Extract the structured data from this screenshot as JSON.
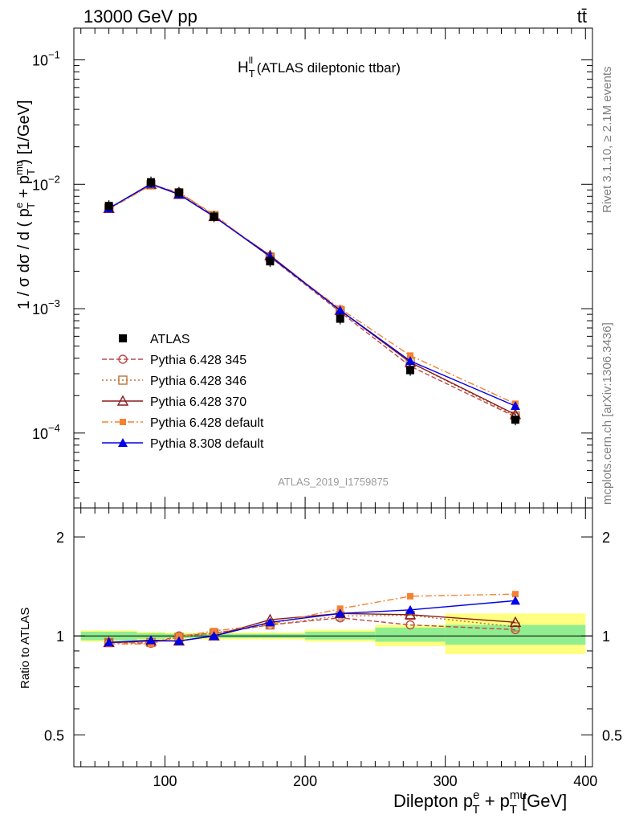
{
  "header": {
    "beam": "13000 GeV pp",
    "process": "tt̄"
  },
  "side_labels": {
    "rivet": "Rivet 3.1.10, ≥ 2.1M events",
    "mcplots": "mcplots.cern.ch [arXiv:1306.3436]"
  },
  "chart_data": [
    {
      "type": "line",
      "title": "Hₗₗ_T (ATLAS dileptonic ttbar)",
      "title_main": "H",
      "title_sup": "ll",
      "title_sub": "T",
      "title_rest": " (ATLAS dileptonic ttbar)",
      "ylabel": "1 / σ  dσ / d ( p^e_T + p^mu_T ) [1/GeV]",
      "yscale": "log",
      "ylim": [
        2.5e-05,
        0.18
      ],
      "xlim": [
        35,
        405
      ],
      "legend_position": "lower-left",
      "ref_label": "ATLAS_2019_I1759875",
      "yticks": [
        {
          "v": 0.1,
          "base": "10",
          "exp": "−1"
        },
        {
          "v": 0.01,
          "base": "10",
          "exp": "−2"
        },
        {
          "v": 0.001,
          "base": "10",
          "exp": "−3"
        },
        {
          "v": 0.0001,
          "base": "10",
          "exp": "−4"
        }
      ],
      "data": {
        "name": "ATLAS",
        "x": [
          60,
          90,
          110,
          135,
          175,
          225,
          275,
          350
        ],
        "y": [
          0.0067,
          0.0104,
          0.0086,
          0.0055,
          0.0024,
          0.00083,
          0.00032,
          0.000128
        ]
      },
      "series": [
        {
          "name": "Pythia 6.428 345",
          "color": "#c0474a",
          "marker": "open-circle",
          "dash": "6,3",
          "values": [
            0.0064,
            0.0099,
            0.0086,
            0.0056,
            0.0026,
            0.00094,
            0.000345,
            0.000135
          ]
        },
        {
          "name": "Pythia 6.428 346",
          "color": "#b87333",
          "marker": "open-square",
          "dash": "2,3",
          "values": [
            0.0064,
            0.0099,
            0.0085,
            0.0056,
            0.0026,
            0.00096,
            0.00037,
            0.000137
          ]
        },
        {
          "name": "Pythia 6.428 370",
          "color": "#8b1a1a",
          "marker": "open-triangle",
          "dash": "",
          "values": [
            0.0064,
            0.01,
            0.0083,
            0.0055,
            0.00268,
            0.00097,
            0.00037,
            0.000141
          ]
        },
        {
          "name": "Pythia 6.428 default",
          "color": "#f58231",
          "marker": "filled-square",
          "dash": "8,3,2,3",
          "values": [
            0.0063,
            0.0098,
            0.0086,
            0.0057,
            0.0026,
            0.001,
            0.00042,
            0.000172
          ]
        },
        {
          "name": "Pythia 8.308 default",
          "color": "#0000e6",
          "marker": "filled-triangle",
          "dash": "",
          "values": [
            0.0064,
            0.0101,
            0.0083,
            0.0055,
            0.00263,
            0.00097,
            0.00038,
            0.000165
          ]
        }
      ]
    },
    {
      "type": "line",
      "ylabel": "Ratio to ATLAS",
      "xlabel": "Dilepton p^e_T + p^mu_T [GeV]",
      "yscale": "log",
      "ylim": [
        0.4,
        2.45
      ],
      "xlim": [
        35,
        405
      ],
      "yticks": [
        {
          "v": 2,
          "label": "2"
        },
        {
          "v": 1,
          "label": "1"
        },
        {
          "v": 0.5,
          "label": "0.5"
        }
      ],
      "xticks": [
        {
          "v": 100,
          "label": "100"
        },
        {
          "v": 200,
          "label": "200"
        },
        {
          "v": 300,
          "label": "300"
        },
        {
          "v": 400,
          "label": "400"
        }
      ],
      "bands": [
        {
          "x0": 40,
          "x1": 80,
          "stat": [
            0.97,
            1.03
          ],
          "total": [
            0.96,
            1.04
          ]
        },
        {
          "x0": 80,
          "x1": 100,
          "stat": [
            0.98,
            1.02
          ],
          "total": [
            0.97,
            1.03
          ]
        },
        {
          "x0": 100,
          "x1": 120,
          "stat": [
            0.985,
            1.015
          ],
          "total": [
            0.975,
            1.025
          ]
        },
        {
          "x0": 120,
          "x1": 150,
          "stat": [
            0.985,
            1.015
          ],
          "total": [
            0.975,
            1.025
          ]
        },
        {
          "x0": 150,
          "x1": 200,
          "stat": [
            0.985,
            1.015
          ],
          "total": [
            0.975,
            1.025
          ]
        },
        {
          "x0": 200,
          "x1": 250,
          "stat": [
            0.975,
            1.03
          ],
          "total": [
            0.96,
            1.045
          ]
        },
        {
          "x0": 250,
          "x1": 300,
          "stat": [
            0.96,
            1.06
          ],
          "total": [
            0.93,
            1.08
          ]
        },
        {
          "x0": 300,
          "x1": 400,
          "stat": [
            0.94,
            1.08
          ],
          "total": [
            0.88,
            1.17
          ]
        }
      ],
      "x": [
        60,
        90,
        110,
        135,
        175,
        225,
        275,
        350
      ],
      "series": [
        {
          "name": "Pythia 6.428 345",
          "values": [
            0.955,
            0.95,
            1.0,
            1.02,
            1.08,
            1.135,
            1.08,
            1.045
          ]
        },
        {
          "name": "Pythia 6.428 346",
          "values": [
            0.955,
            0.955,
            0.99,
            1.02,
            1.08,
            1.15,
            1.155,
            1.065
          ]
        },
        {
          "name": "Pythia 6.428 370",
          "values": [
            0.955,
            0.965,
            0.965,
            1.0,
            1.12,
            1.17,
            1.16,
            1.1
          ]
        },
        {
          "name": "Pythia 6.428 default",
          "values": [
            0.945,
            0.945,
            0.995,
            1.035,
            1.085,
            1.21,
            1.32,
            1.34
          ]
        },
        {
          "name": "Pythia 8.308 default",
          "values": [
            0.955,
            0.97,
            0.965,
            1.0,
            1.1,
            1.17,
            1.2,
            1.28
          ]
        }
      ]
    }
  ]
}
